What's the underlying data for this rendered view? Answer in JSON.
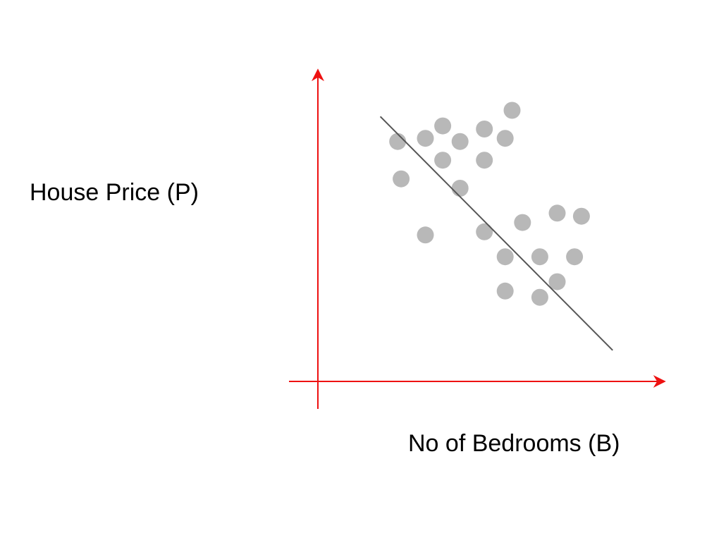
{
  "chart_data": {
    "type": "scatter",
    "title": "",
    "xlabel": "No of Bedrooms (B)",
    "ylabel": "House Price (P)",
    "x_ticks": [],
    "y_ticks": [],
    "grid": false,
    "legend": "none",
    "xlim": [
      0,
      100
    ],
    "ylim": [
      0,
      100
    ],
    "colors": {
      "axis": "#ee1111",
      "point": "#b8b8b8",
      "fit_line": "#555555",
      "label": "#000000"
    },
    "series": [
      {
        "values": [
          {
            "x": 23,
            "y": 77
          },
          {
            "x": 24,
            "y": 65
          },
          {
            "x": 31,
            "y": 78
          },
          {
            "x": 31,
            "y": 47
          },
          {
            "x": 36,
            "y": 82
          },
          {
            "x": 36,
            "y": 71
          },
          {
            "x": 41,
            "y": 62
          },
          {
            "x": 41,
            "y": 77
          },
          {
            "x": 48,
            "y": 81
          },
          {
            "x": 48,
            "y": 71
          },
          {
            "x": 48,
            "y": 48
          },
          {
            "x": 54,
            "y": 78
          },
          {
            "x": 56,
            "y": 87
          },
          {
            "x": 54,
            "y": 29
          },
          {
            "x": 54,
            "y": 40
          },
          {
            "x": 59,
            "y": 51
          },
          {
            "x": 64,
            "y": 40
          },
          {
            "x": 64,
            "y": 27
          },
          {
            "x": 69,
            "y": 54
          },
          {
            "x": 69,
            "y": 32
          },
          {
            "x": 74,
            "y": 40
          },
          {
            "x": 76,
            "y": 53
          }
        ]
      }
    ],
    "trend_line": {
      "x": [
        18,
        85
      ],
      "y": [
        85,
        10
      ]
    }
  }
}
